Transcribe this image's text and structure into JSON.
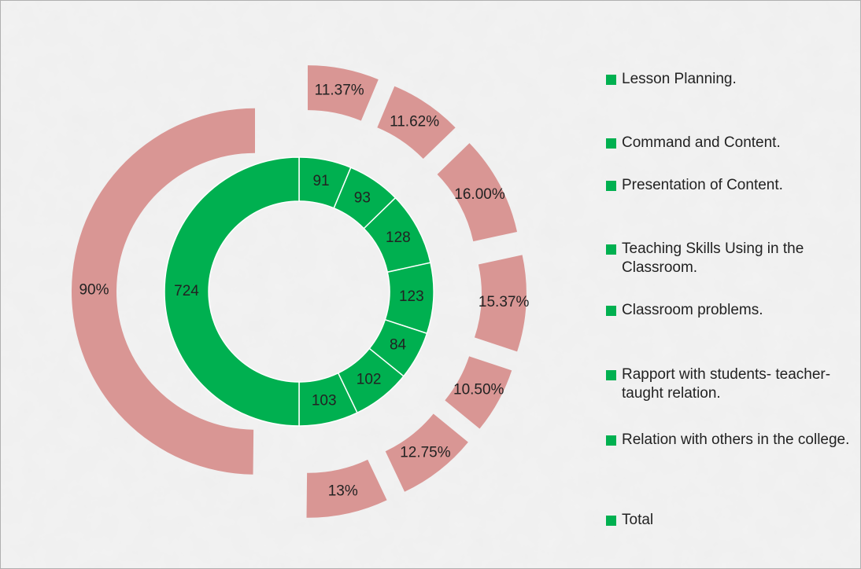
{
  "chart_data": {
    "type": "doughnut",
    "categories": [
      "Lesson Planning.",
      "Command and Content.",
      "Presentation of Content.",
      "Teaching Skills Using in the Classroom.",
      "Classroom problems.",
      "Rapport with students- teacher- taught relation.",
      "Relation with others in the college.",
      "Total"
    ],
    "legend_color": "#00b050",
    "series": [
      {
        "color": "#00b050",
        "values": [
          91,
          93,
          128,
          123,
          84,
          102,
          103,
          724
        ]
      },
      {
        "color": "#d99694",
        "values": [
          11.37,
          11.62,
          16,
          15.37,
          10.5,
          12.75,
          13,
          90
        ],
        "value_labels": [
          "11.37%",
          "11.62%",
          "16.00%",
          "15.37%",
          "10.50%",
          "12.75%",
          "13%",
          "90%"
        ]
      }
    ]
  }
}
